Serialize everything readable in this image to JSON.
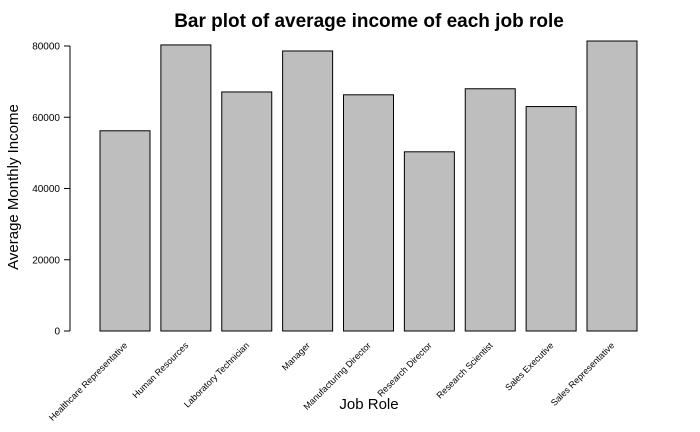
{
  "chart_data": {
    "type": "bar",
    "title": "Bar plot of average income of each job role",
    "xlabel": "Job Role",
    "ylabel": "Average Monthly Income",
    "categories": [
      "Healthcare Representative",
      "Human Resources",
      "Laboratory Technician",
      "Manager",
      "Manufacturing Director",
      "Research Director",
      "Research Scientist",
      "Sales Executive",
      "Sales Representative"
    ],
    "values": [
      56200,
      80300,
      67100,
      78600,
      66300,
      50300,
      68000,
      63000,
      81400
    ],
    "ylim": [
      0,
      80000
    ],
    "yticks": [
      "0",
      "20000",
      "40000",
      "60000",
      "80000"
    ],
    "grid": false,
    "colors": {
      "bar_fill": "#bebebe",
      "bar_stroke": "#000000"
    }
  }
}
